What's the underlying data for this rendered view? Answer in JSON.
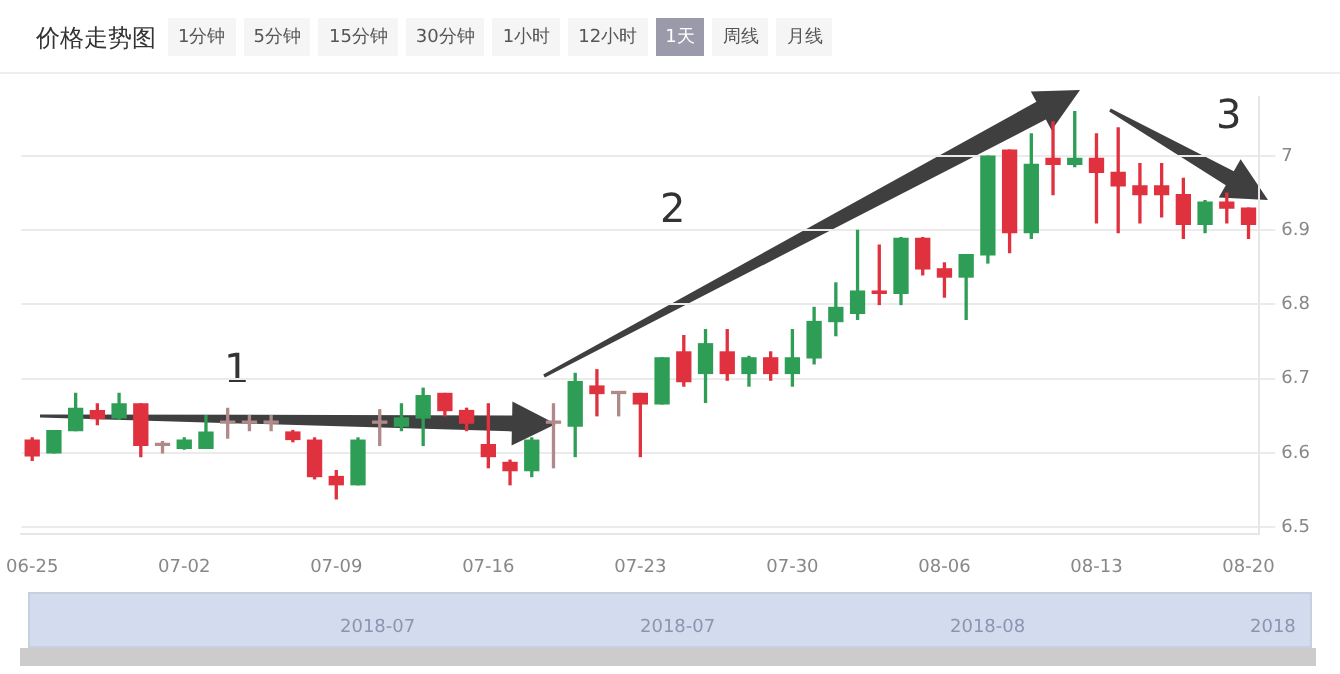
{
  "chart_data": {
    "type": "candlestick",
    "title": "价格走势图",
    "categories": [
      "06-25",
      null,
      null,
      null,
      null,
      null,
      null,
      "07-02",
      null,
      null,
      null,
      null,
      null,
      null,
      "07-09",
      null,
      null,
      null,
      null,
      null,
      null,
      "07-16",
      null,
      null,
      null,
      null,
      null,
      null,
      "07-23",
      null,
      null,
      null,
      null,
      null,
      null,
      "07-30",
      null,
      null,
      null,
      null,
      null,
      null,
      "08-06",
      null,
      null,
      null,
      null,
      null,
      null,
      "08-13",
      null,
      null,
      null,
      null,
      null,
      null,
      "08-20"
    ],
    "ohlc": [
      [
        6.617,
        6.62,
        6.59,
        6.596
      ],
      [
        6.6,
        6.63,
        6.6,
        6.63
      ],
      [
        6.63,
        6.68,
        6.63,
        6.66
      ],
      [
        6.657,
        6.666,
        6.638,
        6.646
      ],
      [
        6.647,
        6.68,
        6.645,
        6.666
      ],
      [
        6.666,
        6.666,
        6.595,
        6.61
      ],
      [
        6.61,
        6.615,
        6.6,
        6.61
      ],
      [
        6.606,
        6.62,
        6.605,
        6.617
      ],
      [
        6.606,
        6.65,
        6.606,
        6.628
      ],
      [
        6.64,
        6.66,
        6.62,
        6.64
      ],
      [
        6.64,
        6.65,
        6.63,
        6.64
      ],
      [
        6.64,
        6.65,
        6.63,
        6.64
      ],
      [
        6.628,
        6.63,
        6.615,
        6.618
      ],
      [
        6.617,
        6.62,
        6.565,
        6.568
      ],
      [
        6.568,
        6.576,
        6.538,
        6.557
      ],
      [
        6.557,
        6.62,
        6.557,
        6.617
      ],
      [
        6.64,
        6.658,
        6.61,
        6.64
      ],
      [
        6.636,
        6.666,
        6.63,
        6.647
      ],
      [
        6.647,
        6.687,
        6.61,
        6.677
      ],
      [
        6.68,
        6.68,
        6.65,
        6.657
      ],
      [
        6.657,
        6.66,
        6.63,
        6.64
      ],
      [
        6.611,
        6.666,
        6.58,
        6.595
      ],
      [
        6.587,
        6.59,
        6.557,
        6.576
      ],
      [
        6.576,
        6.62,
        6.568,
        6.617
      ],
      [
        6.64,
        6.666,
        6.58,
        6.64
      ],
      [
        6.636,
        6.707,
        6.595,
        6.696
      ],
      [
        6.69,
        6.712,
        6.65,
        6.68
      ],
      [
        6.68,
        6.68,
        6.65,
        6.68
      ],
      [
        6.68,
        6.68,
        6.595,
        6.666
      ],
      [
        6.666,
        6.728,
        6.666,
        6.728
      ],
      [
        6.736,
        6.758,
        6.69,
        6.696
      ],
      [
        6.707,
        6.766,
        6.668,
        6.747
      ],
      [
        6.736,
        6.766,
        6.698,
        6.707
      ],
      [
        6.707,
        6.73,
        6.69,
        6.728
      ],
      [
        6.728,
        6.736,
        6.698,
        6.707
      ],
      [
        6.707,
        6.766,
        6.69,
        6.728
      ],
      [
        6.728,
        6.796,
        6.72,
        6.777
      ],
      [
        6.777,
        6.829,
        6.758,
        6.796
      ],
      [
        6.788,
        6.9,
        6.78,
        6.818
      ],
      [
        6.818,
        6.88,
        6.8,
        6.815
      ],
      [
        6.815,
        6.89,
        6.8,
        6.889
      ],
      [
        6.889,
        6.89,
        6.84,
        6.848
      ],
      [
        6.848,
        6.856,
        6.81,
        6.837
      ],
      [
        6.837,
        6.867,
        6.78,
        6.867
      ],
      [
        6.867,
        7.0,
        6.856,
        7.0
      ],
      [
        7.008,
        7.008,
        6.87,
        6.897
      ],
      [
        6.897,
        7.03,
        6.889,
        6.989
      ],
      [
        6.997,
        7.046,
        6.948,
        6.989
      ],
      [
        6.989,
        7.06,
        6.986,
        6.997
      ],
      [
        6.997,
        7.03,
        6.91,
        6.978
      ],
      [
        6.978,
        7.038,
        6.897,
        6.96
      ],
      [
        6.96,
        6.99,
        6.91,
        6.948
      ],
      [
        6.96,
        6.99,
        6.918,
        6.948
      ],
      [
        6.948,
        6.97,
        6.889,
        6.908
      ],
      [
        6.908,
        6.94,
        6.897,
        6.938
      ],
      [
        6.938,
        6.95,
        6.91,
        6.93
      ],
      [
        6.93,
        6.93,
        6.889,
        6.908
      ]
    ],
    "ylim": [
      6.49,
      7.08
    ],
    "yticks": [
      6.5,
      6.6,
      6.7,
      6.8,
      6.9,
      7
    ],
    "grid": "y",
    "annotations": [
      "1",
      "2",
      "3",
      "1分钟",
      "5分钟",
      "15分钟",
      "30分钟",
      "1小时",
      "12小时",
      "1天",
      "周线",
      "月线",
      "2018-07",
      "2018-07",
      "2018-08",
      "2018"
    ]
  }
}
